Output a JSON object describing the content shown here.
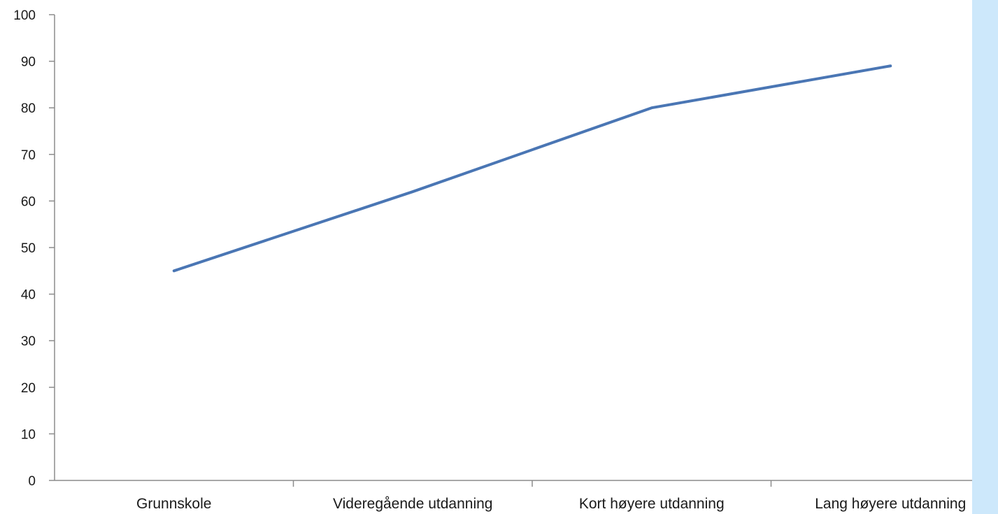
{
  "chart_data": {
    "type": "line",
    "title": "",
    "categories": [
      "Grunnskole",
      "Videregående utdanning",
      "Kort høyere utdanning",
      "Lang høyere utdanning"
    ],
    "series": [
      {
        "values": [
          45,
          62,
          80,
          89
        ],
        "color": "#4a76b4"
      }
    ],
    "ylim": [
      0,
      100
    ],
    "yticks": [
      0,
      10,
      20,
      30,
      40,
      50,
      60,
      70,
      80,
      90,
      100
    ],
    "xlabel": "",
    "ylabel": "",
    "grid": false,
    "legend": "none"
  },
  "colors": {
    "axis": "#8c8c8c",
    "side_band": "#cde8fb",
    "title_fragment": "#1f7bc4"
  }
}
